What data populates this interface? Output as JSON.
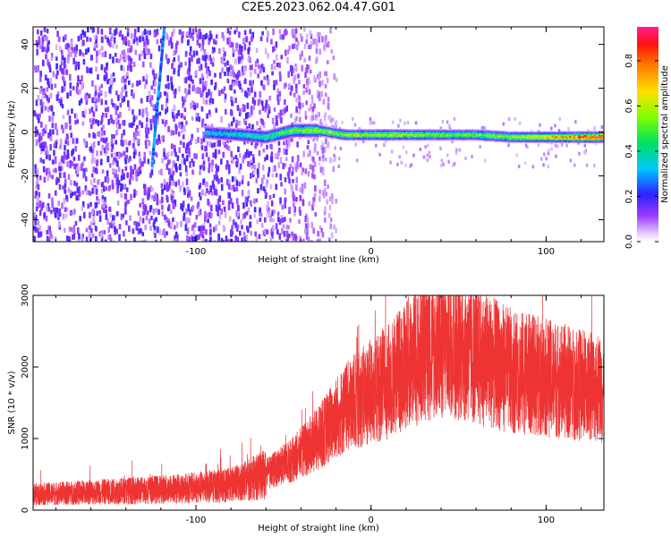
{
  "title": "C2E5.2023.062.04.47.G01",
  "chart_data": [
    {
      "type": "heatmap",
      "xlabel": "Height of straight line (km)",
      "ylabel": "Frequency (Hz)",
      "xlim": [
        -193,
        133
      ],
      "ylim": [
        -50,
        48
      ],
      "xticks": [
        -100,
        0,
        100
      ],
      "yticks": [
        -40,
        -20,
        0,
        20,
        40
      ],
      "colorbar": {
        "label": "Normalized spectral amplitude",
        "range": [
          0,
          0.95
        ],
        "ticks": [
          0.0,
          0.2,
          0.4,
          0.6,
          0.8
        ]
      },
      "features": {
        "noise_region_x": [
          -193,
          -35
        ],
        "tilted_streak": {
          "x_start": -125,
          "y_start": -15,
          "x_end": -118,
          "y_end": 48
        },
        "main_band": [
          {
            "x": -95,
            "y": 0,
            "amp": 0.35
          },
          {
            "x": -75,
            "y": -1,
            "amp": 0.4
          },
          {
            "x": -60,
            "y": -2,
            "amp": 0.45
          },
          {
            "x": -45,
            "y": 1,
            "amp": 0.55
          },
          {
            "x": -30,
            "y": 1,
            "amp": 0.6
          },
          {
            "x": -15,
            "y": -1,
            "amp": 0.6
          },
          {
            "x": 0,
            "y": -1,
            "amp": 0.6
          },
          {
            "x": 10,
            "y": -1,
            "amp": 0.65
          },
          {
            "x": 20,
            "y": -1,
            "amp": 0.6
          },
          {
            "x": 40,
            "y": -1,
            "amp": 0.55
          },
          {
            "x": 60,
            "y": -1,
            "amp": 0.55
          },
          {
            "x": 80,
            "y": -2,
            "amp": 0.6
          },
          {
            "x": 100,
            "y": -2,
            "amp": 0.7
          },
          {
            "x": 120,
            "y": -2,
            "amp": 0.9
          },
          {
            "x": 133,
            "y": -2,
            "amp": 0.9
          }
        ]
      }
    },
    {
      "type": "line",
      "xlabel": "Height of straight line (km)",
      "ylabel": "SNR (10 * v/v)",
      "xlim": [
        -193,
        133
      ],
      "ylim": [
        0,
        3000
      ],
      "xticks": [
        -100,
        0,
        100
      ],
      "yticks": [
        0,
        1000,
        2000,
        3000
      ],
      "color": "#ee3333",
      "envelope": [
        {
          "x": -193,
          "y": 220
        },
        {
          "x": -150,
          "y": 260
        },
        {
          "x": -110,
          "y": 300
        },
        {
          "x": -80,
          "y": 350
        },
        {
          "x": -60,
          "y": 500
        },
        {
          "x": -45,
          "y": 700
        },
        {
          "x": -30,
          "y": 1000
        },
        {
          "x": -20,
          "y": 1300
        },
        {
          "x": -10,
          "y": 1500
        },
        {
          "x": 0,
          "y": 1650
        },
        {
          "x": 10,
          "y": 1800
        },
        {
          "x": 20,
          "y": 2050
        },
        {
          "x": 35,
          "y": 2250
        },
        {
          "x": 45,
          "y": 2300
        },
        {
          "x": 60,
          "y": 2150
        },
        {
          "x": 80,
          "y": 1950
        },
        {
          "x": 100,
          "y": 1850
        },
        {
          "x": 120,
          "y": 1750
        },
        {
          "x": 133,
          "y": 1700
        }
      ]
    }
  ]
}
